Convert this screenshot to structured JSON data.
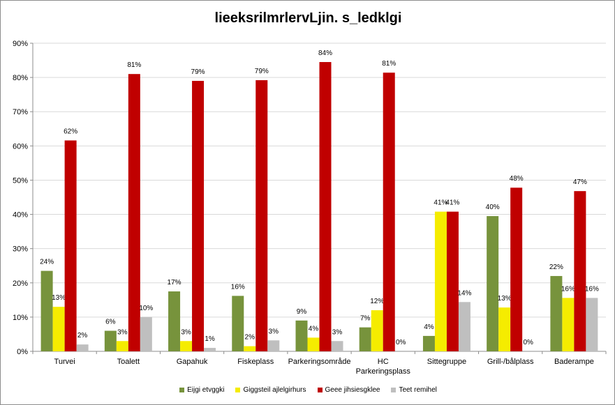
{
  "chart_data": {
    "type": "bar",
    "title": "lieeksrilmrlervLjin. s_ledklgi",
    "categories": [
      "Turvei",
      "Toalett",
      "Gapahuk",
      "Fiskeplass",
      "Parkeringsområde",
      "HC Parkeringsplass",
      "Sittegruppe",
      "Grill-/bålplass",
      "Baderampe"
    ],
    "category_lines": [
      [
        "Turvei"
      ],
      [
        "Toalett"
      ],
      [
        "Gapahuk"
      ],
      [
        "Fiskeplass"
      ],
      [
        "Parkeringsområde"
      ],
      [
        "HC",
        "Parkeringsplass"
      ],
      [
        "Sittegruppe"
      ],
      [
        "Grill-/bålplass"
      ],
      [
        "Baderampe"
      ]
    ],
    "series": [
      {
        "name": "Eijgi etvggki",
        "color": "#77933c",
        "values": [
          23.5,
          6,
          17.5,
          16.2,
          9,
          7,
          4.5,
          39.5,
          22
        ]
      },
      {
        "name": "Giggsteil ajlelgirhurs",
        "color": "#f5ec00",
        "values": [
          13,
          3,
          3,
          1.5,
          4,
          12,
          40.8,
          12.8,
          15.6
        ]
      },
      {
        "name": "Geee jihsiesgklee",
        "color": "#c00000",
        "values": [
          61.6,
          81,
          79,
          79.2,
          84.5,
          81.4,
          40.8,
          47.8,
          46.8
        ]
      },
      {
        "name": "Teet remihel",
        "color": "#bfbfbf",
        "values": [
          2,
          10,
          1,
          3.2,
          3,
          0,
          14.4,
          0,
          15.6
        ]
      }
    ],
    "data_labels": [
      [
        "24%",
        "6%",
        "17%",
        "16%",
        "9%",
        "7%",
        "4%",
        "40%",
        "22%"
      ],
      [
        "13%",
        "3%",
        "3%",
        "2%",
        "4%",
        "12%",
        "41%",
        "13%",
        "16%"
      ],
      [
        "62%",
        "81%",
        "79%",
        "79%",
        "84%",
        "81%",
        "41%",
        "48%",
        "47%"
      ],
      [
        "2%",
        "10%",
        "1%",
        "3%",
        "3%",
        "0%",
        "14%",
        "0%",
        "16%"
      ]
    ],
    "y_ticks": [
      "0%",
      "10%",
      "20%",
      "30%",
      "40%",
      "50%",
      "60%",
      "70%",
      "80%",
      "90%"
    ],
    "ylim": [
      0,
      90
    ],
    "grid": true,
    "legend_position": "bottom"
  }
}
